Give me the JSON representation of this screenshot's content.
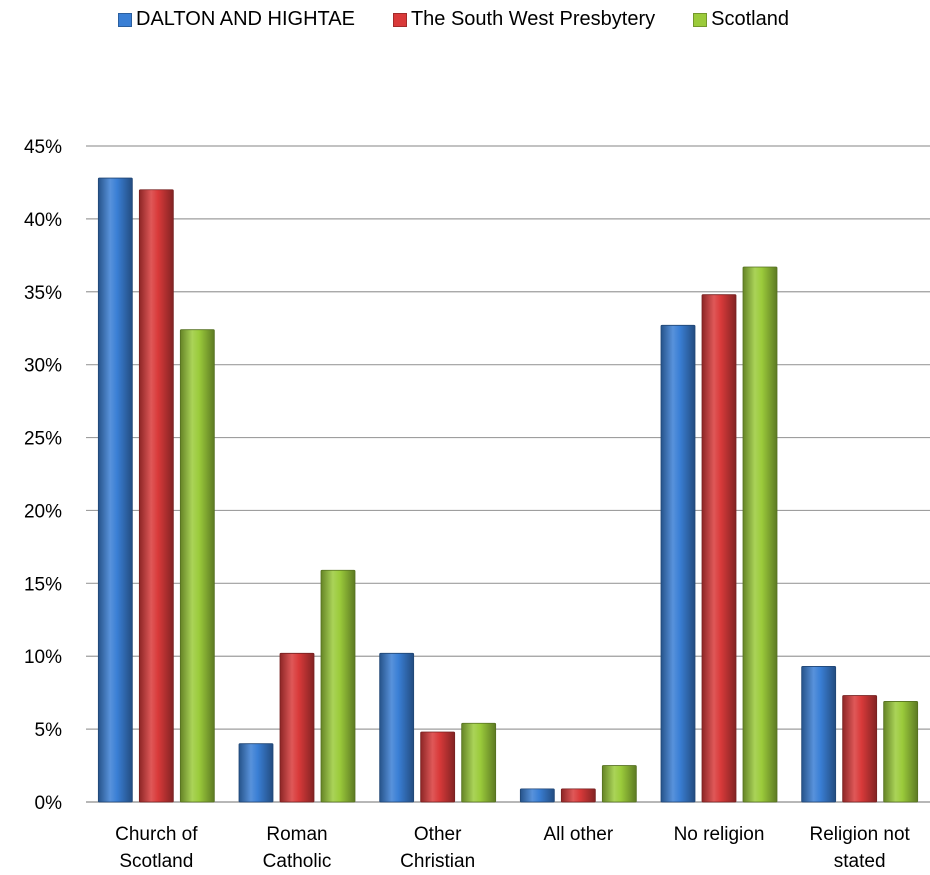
{
  "chart_data": {
    "type": "bar",
    "categories": [
      [
        "Church of",
        "Scotland"
      ],
      [
        "Roman",
        "Catholic"
      ],
      [
        "Other",
        "Christian"
      ],
      [
        "All other"
      ],
      [
        "No religion"
      ],
      [
        "Religion not",
        "stated"
      ]
    ],
    "series": [
      {
        "name": "DALTON AND HIGHTAE",
        "color": "#3a7fd5",
        "values": [
          42.8,
          4.0,
          10.2,
          0.9,
          32.7,
          9.3
        ]
      },
      {
        "name": "The South West Presbytery",
        "color": "#d93a3a",
        "values": [
          42.0,
          10.2,
          4.8,
          0.9,
          34.8,
          7.3
        ]
      },
      {
        "name": "Scotland",
        "color": "#9bcb3b",
        "values": [
          32.4,
          15.9,
          5.4,
          2.5,
          36.7,
          6.9
        ]
      }
    ],
    "ylim": [
      0,
      45
    ],
    "yticks": [
      "0%",
      "5%",
      "10%",
      "15%",
      "20%",
      "25%",
      "30%",
      "35%",
      "40%",
      "45%"
    ],
    "grid": true,
    "legend_position": "top"
  }
}
